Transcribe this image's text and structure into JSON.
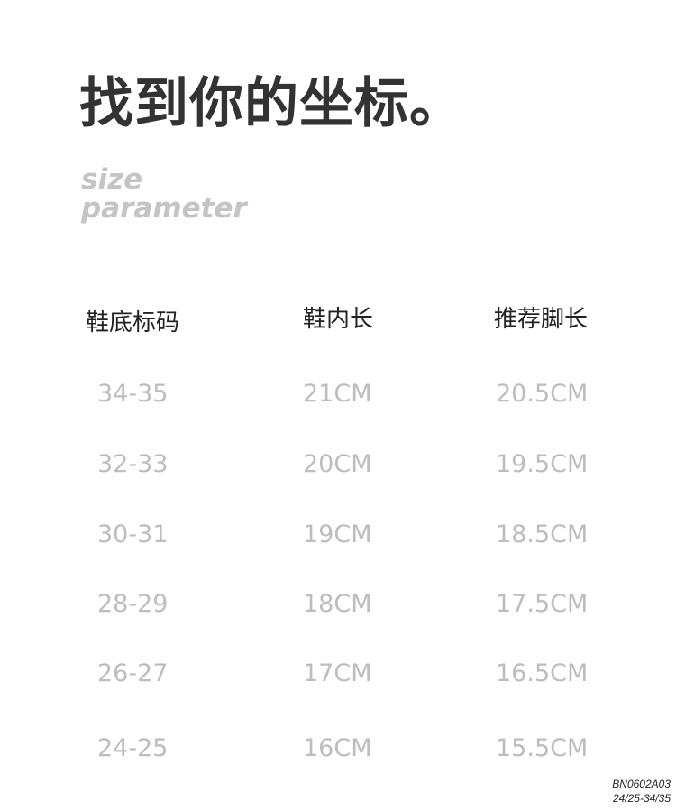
{
  "title": "找到你的坐标。",
  "subtitle": [
    "size",
    "parameter"
  ],
  "table": {
    "headers": [
      "鞋底标码",
      "鞋内长",
      "推荐脚长"
    ],
    "rows": [
      [
        "34-35",
        "21CM",
        "20.5CM"
      ],
      [
        "32-33",
        "20CM",
        "19.5CM"
      ],
      [
        "30-31",
        "19CM",
        "18.5CM"
      ],
      [
        "28-29",
        "18CM",
        "17.5CM"
      ],
      [
        "26-27",
        "17CM",
        "16.5CM"
      ],
      [
        "24-25",
        "16CM",
        "15.5CM"
      ]
    ]
  },
  "product_code": [
    "BN0602A03",
    "24/25-34/35"
  ]
}
